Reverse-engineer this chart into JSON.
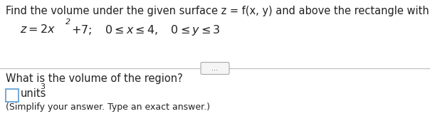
{
  "bg_color": "#ffffff",
  "line1": "Find the volume under the given surface z = f(x, y) and above the rectangle with the given boundaries.",
  "question": "What is the volume of the region?",
  "simplify": "(Simplify your answer. Type an exact answer.)",
  "units_text": "units",
  "units_exp": "3",
  "text_color_main": "#222222",
  "text_color_blue": "#1a3a8c",
  "divider_color": "#bbbbbb",
  "box_color": "#5b9bd5",
  "font_size_main": 10.5,
  "font_size_formula": 11.5,
  "font_size_small": 9.0,
  "font_size_super": 8.0
}
